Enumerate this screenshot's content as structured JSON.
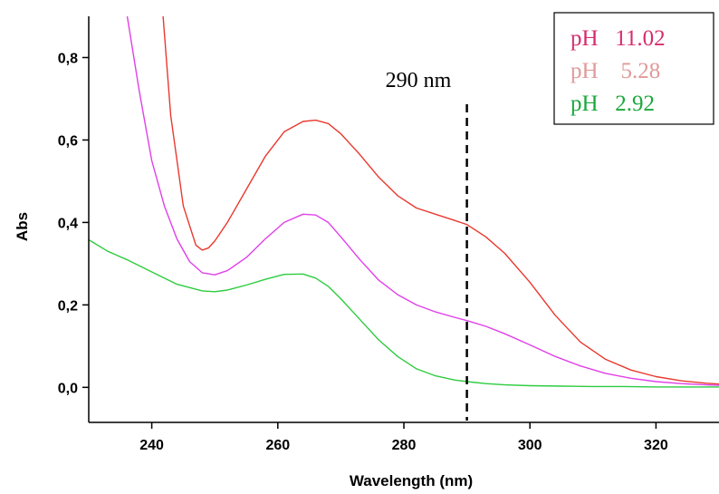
{
  "chart_data": {
    "type": "line",
    "title": "",
    "xlabel": "Wavelength (nm)",
    "ylabel": "Abs",
    "xlim": [
      230,
      330
    ],
    "ylim": [
      -0.085,
      0.9
    ],
    "xticks": [
      240,
      260,
      280,
      300,
      320
    ],
    "yticks": [
      0.0,
      0.2,
      0.4,
      0.6,
      0.8
    ],
    "xtick_labels": [
      "240",
      "260",
      "280",
      "300",
      "320"
    ],
    "ytick_labels": [
      "0,0",
      "0,2",
      "0,4",
      "0,6",
      "0,8"
    ],
    "grid": false,
    "legend_position": "top-right",
    "annotation": {
      "text": "290 nm",
      "x": 290,
      "line_style": "dashed"
    },
    "series": [
      {
        "name": "pH   11.02",
        "color": "#e8392e",
        "x": [
          241.8,
          243,
          245,
          247,
          248,
          249,
          250,
          252,
          255,
          258,
          261,
          264,
          266,
          268,
          270,
          273,
          276,
          279,
          282,
          285,
          288,
          290,
          293,
          296,
          300,
          304,
          308,
          312,
          316,
          320,
          324,
          328,
          330
        ],
        "y": [
          0.9,
          0.66,
          0.44,
          0.345,
          0.333,
          0.338,
          0.355,
          0.4,
          0.48,
          0.56,
          0.62,
          0.645,
          0.648,
          0.64,
          0.615,
          0.565,
          0.51,
          0.465,
          0.435,
          0.42,
          0.405,
          0.395,
          0.365,
          0.325,
          0.255,
          0.175,
          0.11,
          0.068,
          0.042,
          0.026,
          0.016,
          0.01,
          0.008
        ]
      },
      {
        "name": "pH    5.28",
        "color": "#e040e8",
        "x": [
          236.1,
          238,
          240,
          242,
          244,
          246,
          248,
          250,
          252,
          255,
          258,
          261,
          264,
          266,
          268,
          270,
          273,
          276,
          279,
          282,
          285,
          288,
          290,
          293,
          296,
          300,
          304,
          308,
          312,
          316,
          320,
          324,
          328,
          330
        ],
        "y": [
          0.9,
          0.72,
          0.55,
          0.44,
          0.36,
          0.305,
          0.278,
          0.273,
          0.283,
          0.315,
          0.36,
          0.4,
          0.42,
          0.418,
          0.4,
          0.365,
          0.31,
          0.26,
          0.225,
          0.2,
          0.183,
          0.17,
          0.162,
          0.148,
          0.13,
          0.103,
          0.075,
          0.052,
          0.034,
          0.022,
          0.014,
          0.009,
          0.006,
          0.005
        ]
      },
      {
        "name": "pH   2.92",
        "color": "#2ecc40",
        "x": [
          230,
          233,
          236,
          240,
          244,
          248,
          250,
          252,
          255,
          258,
          261,
          264,
          266,
          268,
          270,
          273,
          276,
          279,
          282,
          285,
          288,
          290,
          293,
          296,
          300,
          305,
          310,
          315,
          320,
          325,
          330
        ],
        "y": [
          0.358,
          0.33,
          0.31,
          0.28,
          0.25,
          0.234,
          0.232,
          0.236,
          0.248,
          0.262,
          0.274,
          0.275,
          0.265,
          0.245,
          0.215,
          0.165,
          0.115,
          0.075,
          0.045,
          0.028,
          0.018,
          0.014,
          0.009,
          0.006,
          0.004,
          0.003,
          0.002,
          0.002,
          0.001,
          0.001,
          0.001
        ]
      }
    ],
    "legend_colors": [
      "#d62d6e",
      "#e09a9a",
      "#1aa83c"
    ]
  }
}
